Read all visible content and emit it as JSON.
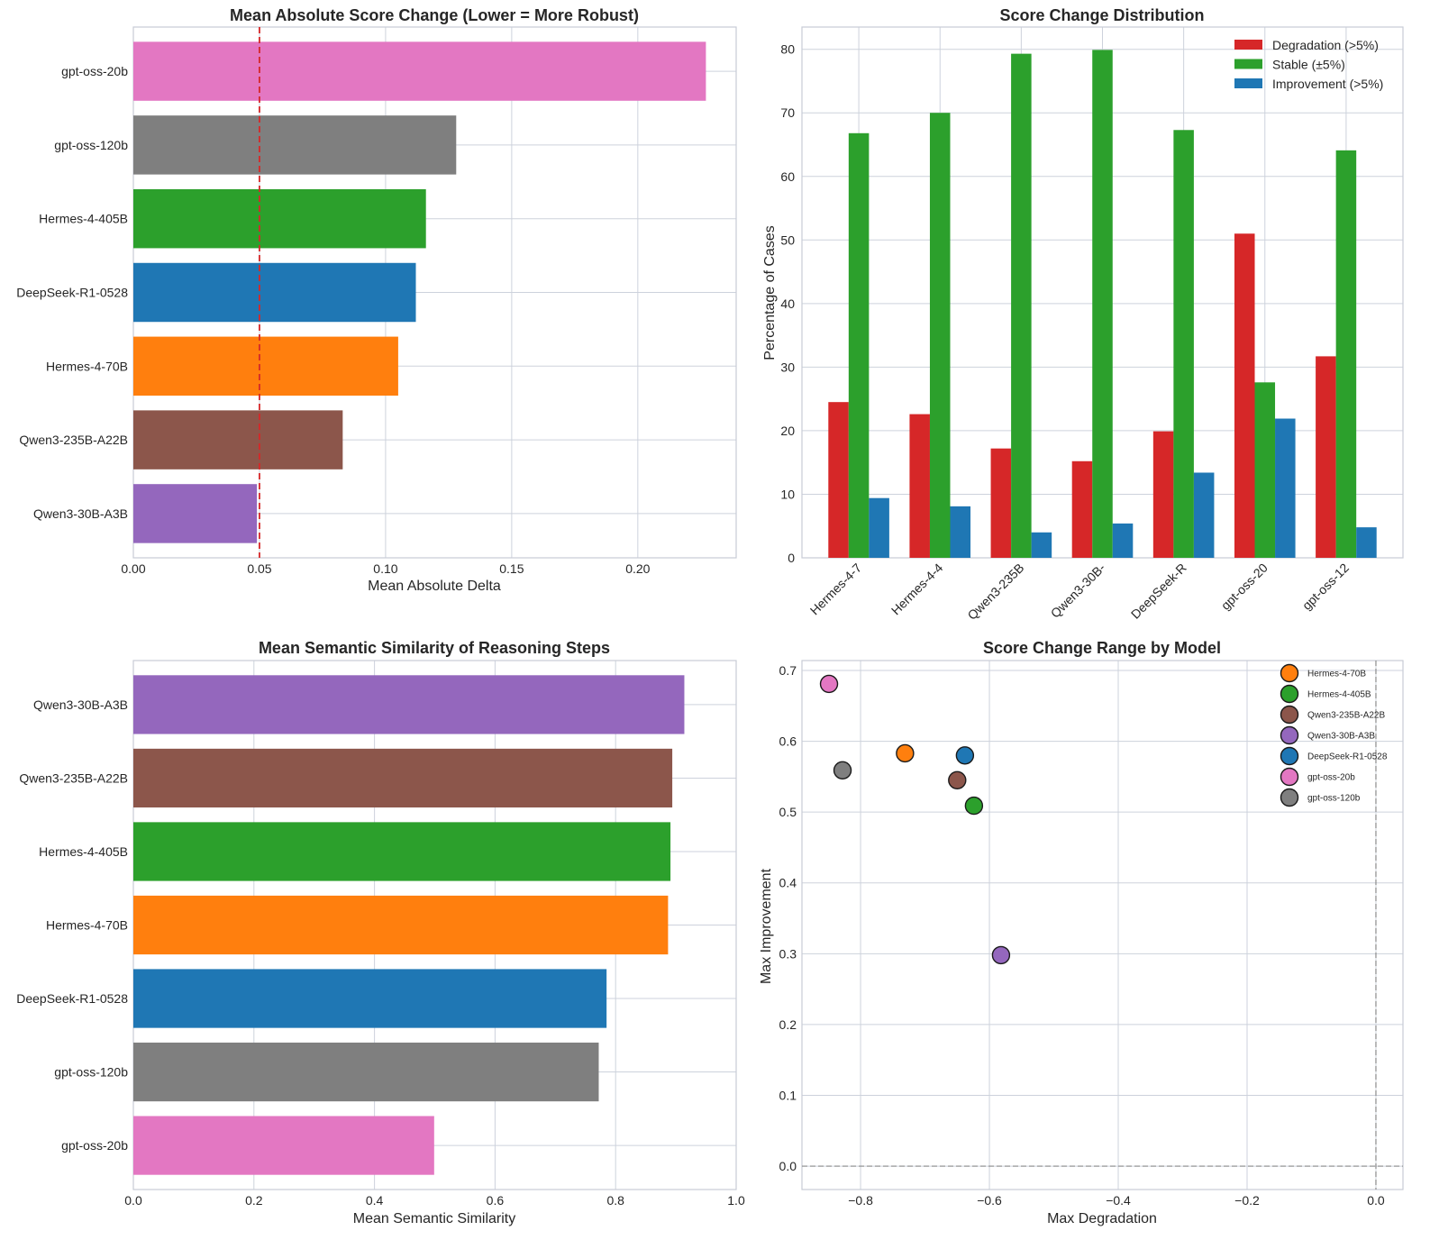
{
  "figure": {
    "panels": [
      "mean-absolute-score-change",
      "score-change-distribution",
      "mean-semantic-similarity",
      "score-change-range"
    ]
  },
  "colors": {
    "Hermes-4-70B": "#ff7f0e",
    "Hermes-4-405B": "#2ca02c",
    "Qwen3-235B-A22B": "#8c564b",
    "Qwen3-30B-A3B": "#9467bd",
    "DeepSeek-R1-0528": "#1f77b4",
    "gpt-oss-20b": "#e377c2",
    "gpt-oss-120b": "#7f7f7f",
    "degradation": "#d62728",
    "stable": "#2ca02c",
    "improvement": "#1f77b4",
    "threshold_line": "#d62728"
  },
  "chart_data": [
    {
      "id": "mean-abs-change",
      "type": "bar",
      "orientation": "horizontal",
      "title": "Mean Absolute Score Change (Lower = More Robust)",
      "xlabel": "Mean Absolute Delta",
      "ylabel": "",
      "categories": [
        "gpt-oss-20b",
        "gpt-oss-120b",
        "Hermes-4-405B",
        "DeepSeek-R1-0528",
        "Hermes-4-70B",
        "Qwen3-235B-A22B",
        "Qwen3-30B-A3B"
      ],
      "values": [
        0.227,
        0.128,
        0.116,
        0.112,
        0.105,
        0.083,
        0.049
      ],
      "xlim": [
        0.0,
        0.239
      ],
      "xticks": [
        0.0,
        0.05,
        0.1,
        0.15,
        0.2
      ],
      "xtick_labels": [
        "0.00",
        "0.05",
        "0.10",
        "0.15",
        "0.20"
      ],
      "reference_line": {
        "x": 0.05,
        "style": "dashed",
        "color": "#d62728"
      },
      "grid": true
    },
    {
      "id": "score-change-dist",
      "type": "bar",
      "orientation": "vertical",
      "title": "Score Change Distribution",
      "xlabel": "",
      "ylabel": "Percentage of Cases",
      "categories": [
        "Hermes-4-7",
        "Hermes-4-4",
        "Qwen3-235B",
        "Qwen3-30B-",
        "DeepSeek-R",
        "gpt-oss-20",
        "gpt-oss-12"
      ],
      "series": [
        {
          "name": "Degradation (>5%)",
          "key": "degradation",
          "values": [
            24.5,
            22.6,
            17.2,
            15.2,
            19.9,
            51.0,
            31.7
          ]
        },
        {
          "name": "Stable (±5%)",
          "key": "stable",
          "values": [
            66.8,
            70.0,
            79.3,
            79.9,
            67.3,
            27.6,
            64.1
          ]
        },
        {
          "name": "Improvement (>5%)",
          "key": "improvement",
          "values": [
            9.4,
            8.1,
            4.0,
            5.4,
            13.4,
            21.9,
            4.8
          ]
        }
      ],
      "ylim": [
        0,
        83.5
      ],
      "yticks": [
        0,
        10,
        20,
        30,
        40,
        50,
        60,
        70,
        80
      ],
      "legend": "top-right",
      "grid": true
    },
    {
      "id": "semantic-similarity",
      "type": "bar",
      "orientation": "horizontal",
      "title": "Mean Semantic Similarity of Reasoning Steps",
      "xlabel": "Mean Semantic Similarity",
      "ylabel": "",
      "categories": [
        "Qwen3-30B-A3B",
        "Qwen3-235B-A22B",
        "Hermes-4-405B",
        "Hermes-4-70B",
        "DeepSeek-R1-0528",
        "gpt-oss-120b",
        "gpt-oss-20b"
      ],
      "values": [
        0.914,
        0.894,
        0.891,
        0.887,
        0.785,
        0.772,
        0.499
      ],
      "xlim": [
        0.0,
        1.0
      ],
      "xticks": [
        0.0,
        0.2,
        0.4,
        0.6,
        0.8,
        1.0
      ],
      "xtick_labels": [
        "0.0",
        "0.2",
        "0.4",
        "0.6",
        "0.8",
        "1.0"
      ],
      "grid": true
    },
    {
      "id": "score-change-range",
      "type": "scatter",
      "title": "Score Change Range by Model",
      "xlabel": "Max Degradation",
      "ylabel": "Max Improvement",
      "points": [
        {
          "name": "Hermes-4-70B",
          "x": -0.731,
          "y": 0.583
        },
        {
          "name": "Hermes-4-405B",
          "x": -0.624,
          "y": 0.509
        },
        {
          "name": "Qwen3-235B-A22B",
          "x": -0.65,
          "y": 0.545
        },
        {
          "name": "Qwen3-30B-A3B",
          "x": -0.582,
          "y": 0.298
        },
        {
          "name": "DeepSeek-R1-0528",
          "x": -0.638,
          "y": 0.58
        },
        {
          "name": "gpt-oss-20b",
          "x": -0.849,
          "y": 0.681
        },
        {
          "name": "gpt-oss-120b",
          "x": -0.828,
          "y": 0.559
        }
      ],
      "xlim": [
        -0.891,
        0.042
      ],
      "ylim": [
        -0.033,
        0.714
      ],
      "xticks": [
        -0.8,
        -0.6,
        -0.4,
        -0.2,
        0.0
      ],
      "xtick_labels": [
        "−0.8",
        "−0.6",
        "−0.4",
        "−0.2",
        "0.0"
      ],
      "yticks": [
        0.0,
        0.1,
        0.2,
        0.3,
        0.4,
        0.5,
        0.6,
        0.7
      ],
      "ytick_labels": [
        "0.0",
        "0.1",
        "0.2",
        "0.3",
        "0.4",
        "0.5",
        "0.6",
        "0.7"
      ],
      "reference_lines": [
        {
          "axis": "x",
          "value": 0.0,
          "style": "dashed"
        },
        {
          "axis": "y",
          "value": 0.0,
          "style": "dashed"
        }
      ],
      "legend": "top-right",
      "grid": true
    }
  ]
}
